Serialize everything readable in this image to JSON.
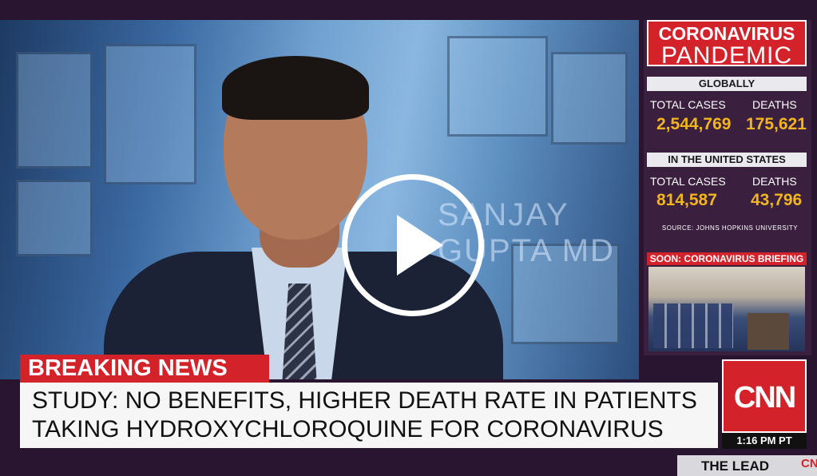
{
  "video": {
    "background_caption": "SANJAY GUPTA MD",
    "play_control": "play-icon"
  },
  "sidebar": {
    "title_line1": "CORONAVIRUS",
    "title_line2": "PANDEMIC",
    "global": {
      "band": "GLOBALLY",
      "cases_label": "TOTAL CASES",
      "cases_value": "2,544,769",
      "deaths_label": "DEATHS",
      "deaths_value": "175,621"
    },
    "us": {
      "band": "IN THE UNITED STATES",
      "cases_label": "TOTAL CASES",
      "cases_value": "814,587",
      "deaths_label": "DEATHS",
      "deaths_value": "43,796"
    },
    "source": "SOURCE: JOHNS HOPKINS UNIVERSITY",
    "soon": "SOON: CORONAVIRUS BRIEFING"
  },
  "lower_third": {
    "breaking": "BREAKING NEWS",
    "headline_line1": "STUDY: NO BENEFITS, HIGHER DEATH RATE IN PATIENTS",
    "headline_line2": "TAKING HYDROXYCHLOROQUINE FOR CORONAVIRUS",
    "network": "CNN",
    "time": "1:16 PM PT",
    "show": "THE LEAD",
    "show_logo": "CN"
  },
  "colors": {
    "cnn_red": "#d3222a",
    "stat_yellow": "#f2b51d",
    "sidebar_bg": "#3a1f3f"
  }
}
